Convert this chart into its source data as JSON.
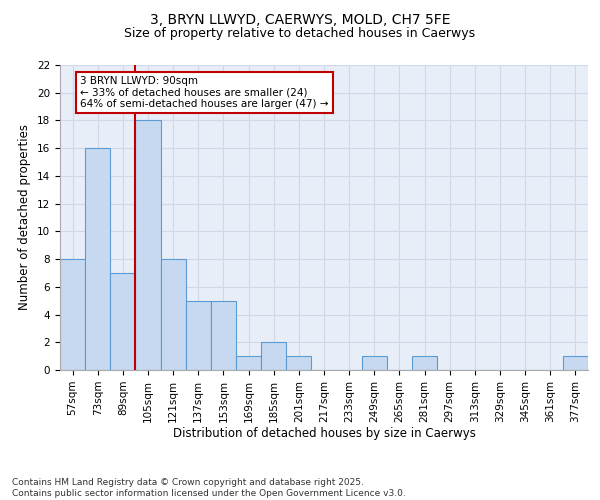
{
  "title_line1": "3, BRYN LLWYD, CAERWYS, MOLD, CH7 5FE",
  "title_line2": "Size of property relative to detached houses in Caerwys",
  "xlabel": "Distribution of detached houses by size in Caerwys",
  "ylabel": "Number of detached properties",
  "categories": [
    "57sqm",
    "73sqm",
    "89sqm",
    "105sqm",
    "121sqm",
    "137sqm",
    "153sqm",
    "169sqm",
    "185sqm",
    "201sqm",
    "217sqm",
    "233sqm",
    "249sqm",
    "265sqm",
    "281sqm",
    "297sqm",
    "313sqm",
    "329sqm",
    "345sqm",
    "361sqm",
    "377sqm"
  ],
  "values": [
    8,
    16,
    7,
    18,
    8,
    5,
    5,
    1,
    2,
    1,
    0,
    0,
    1,
    0,
    1,
    0,
    0,
    0,
    0,
    0,
    1
  ],
  "bar_color": "#c6d9f0",
  "bar_edge_color": "#5b9bd5",
  "vline_x": 2.5,
  "vline_color": "#c00000",
  "annotation_text": "3 BRYN LLWYD: 90sqm\n← 33% of detached houses are smaller (24)\n64% of semi-detached houses are larger (47) →",
  "annotation_box_color": "#c00000",
  "ylim": [
    0,
    22
  ],
  "yticks": [
    0,
    2,
    4,
    6,
    8,
    10,
    12,
    14,
    16,
    18,
    20,
    22
  ],
  "grid_color": "#d0d8e8",
  "bg_color": "#e8eef8",
  "footnote": "Contains HM Land Registry data © Crown copyright and database right 2025.\nContains public sector information licensed under the Open Government Licence v3.0.",
  "footnote_fontsize": 6.5,
  "title_fontsize": 10,
  "subtitle_fontsize": 9,
  "axis_label_fontsize": 8.5,
  "tick_fontsize": 7.5,
  "annotation_fontsize": 7.5
}
